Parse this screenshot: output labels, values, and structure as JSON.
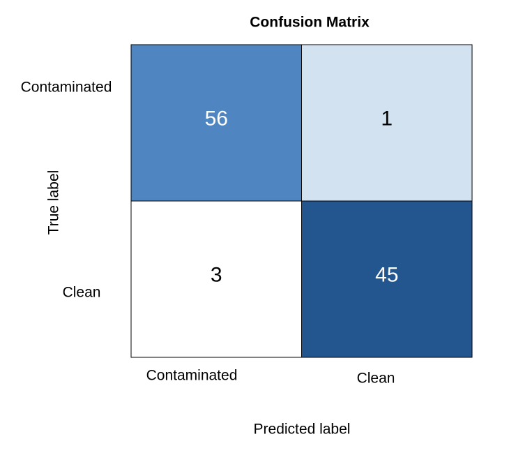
{
  "chart_data": {
    "type": "heatmap",
    "title": "Confusion Matrix",
    "x_label": "Predicted label",
    "y_label": "True label",
    "x_categories": [
      "Contaminated",
      "Clean"
    ],
    "y_categories": [
      "Contaminated",
      "Clean"
    ],
    "values": [
      [
        56,
        1
      ],
      [
        3,
        45
      ]
    ],
    "colors": [
      [
        "#4f86c1",
        "#d3e2f1"
      ],
      [
        "#ffffff",
        "#23558f"
      ]
    ],
    "text_colors": [
      [
        "#ffffff",
        "#000000"
      ],
      [
        "#000000",
        "#ffffff"
      ]
    ]
  }
}
